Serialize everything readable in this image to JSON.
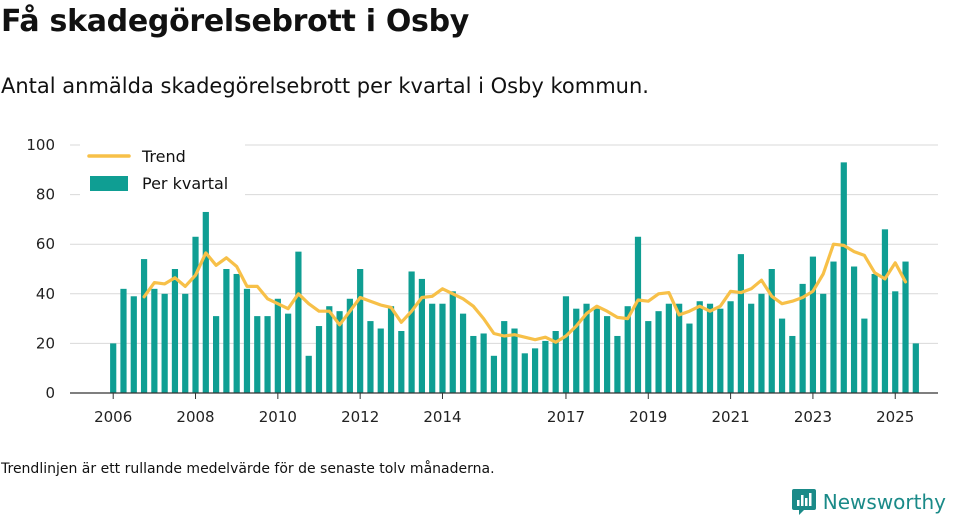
{
  "title": "Få skadegörelsebrott i Osby",
  "subtitle": "Antal anmälda skadegörelsebrott per kvartal i Osby kommun.",
  "footnote": "Trendlinjen är ett rullande medelvärde för de senaste tolv månaderna.",
  "brand": {
    "name": "Newsworthy",
    "icon": "newsworthy-logo-icon",
    "color": "#1a8a88"
  },
  "colors": {
    "bar": "#0f9e93",
    "trend": "#f7c048",
    "grid": "#d9d9d9",
    "axis": "#333333"
  },
  "chart_data": {
    "type": "bar",
    "x_start": "2006 Q1",
    "x_tick_labels": [
      "2006",
      "2008",
      "2010",
      "2012",
      "2014",
      "2017",
      "2019",
      "2021",
      "2023",
      "2025"
    ],
    "y_tick_labels": [
      "0",
      "20",
      "40",
      "60",
      "80",
      "100"
    ],
    "ylim": [
      0,
      100
    ],
    "grid": true,
    "legend_position": "top-left",
    "series": [
      {
        "name": "Per kvartal",
        "kind": "bar",
        "values": [
          20,
          42,
          39,
          54,
          42,
          40,
          50,
          40,
          63,
          73,
          31,
          50,
          48,
          42,
          31,
          31,
          38,
          32,
          57,
          15,
          27,
          35,
          33,
          38,
          50,
          29,
          26,
          35,
          25,
          49,
          46,
          36,
          36,
          41,
          32,
          23,
          24,
          15,
          29,
          26,
          16,
          18,
          21,
          25,
          39,
          34,
          36,
          34,
          31,
          23,
          35,
          63,
          29,
          33,
          36,
          36,
          28,
          37,
          36,
          34,
          37,
          56,
          36,
          40,
          50,
          30,
          23,
          44,
          55,
          40,
          53,
          93,
          51,
          30,
          48,
          66,
          41,
          53,
          20
        ]
      },
      {
        "name": "Trend",
        "kind": "line",
        "start_index": 3,
        "values": [
          38.8,
          44.5,
          44,
          46.5,
          43,
          47.5,
          56.5,
          51.5,
          54.5,
          51,
          43,
          43,
          38,
          36,
          34,
          40,
          36,
          33,
          33,
          27.5,
          33,
          38.5,
          37,
          35.5,
          34.5,
          28.5,
          33,
          38.5,
          39,
          42,
          40,
          38,
          35,
          30,
          24,
          23,
          23.5,
          22.5,
          21.5,
          22.5,
          20.5,
          23,
          27,
          32,
          35,
          33,
          30.5,
          30,
          37.5,
          37,
          40,
          40.5,
          31.5,
          33,
          35,
          33,
          35,
          41,
          40.5,
          42,
          45.5,
          39,
          36,
          37,
          38.5,
          41,
          48,
          60,
          59.5,
          57,
          55.5,
          48.5,
          46,
          52.5,
          44.8
        ]
      }
    ]
  }
}
